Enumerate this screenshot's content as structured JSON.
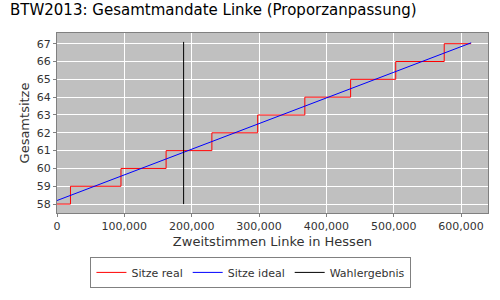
{
  "chart_data": {
    "type": "line",
    "title": "BTW2013: Gesamtmandate Linke (Proporzanpassung)",
    "x_label": "Zweitstimmen Linke in Hessen",
    "y_label": "Gesamtsitze",
    "xlim": [
      0,
      640000
    ],
    "xticks": [
      0,
      {
        "value": 100000,
        "label": "100,000"
      },
      {
        "value": 200000,
        "label": "200,000"
      },
      {
        "value": 300000,
        "label": "300,000"
      },
      {
        "value": 400000,
        "label": "400,000"
      },
      {
        "value": 500000,
        "label": "500,000"
      },
      {
        "value": 600000,
        "label": "600,000"
      }
    ],
    "ylim": [
      57.5,
      67.6
    ],
    "yticks": [
      58,
      59,
      60,
      61,
      62,
      63,
      64,
      65,
      66,
      67
    ],
    "grid": true,
    "legend": "bottom",
    "series": [
      {
        "name": "Sitze real",
        "color": "#ff0000",
        "line_style": "step",
        "x": [
          0,
          20000,
          95000,
          162000,
          230000,
          298000,
          368000,
          436000,
          503000,
          575000,
          615000
        ],
        "values": [
          58,
          59,
          60,
          61,
          62,
          63,
          64,
          65,
          66,
          67,
          67
        ]
      },
      {
        "name": "Sitze ideal",
        "color": "#0000ff",
        "line_style": "solid",
        "x": [
          0,
          615000
        ],
        "values": [
          58.2,
          67.05
        ]
      },
      {
        "name": "Wahlergebnis",
        "color": "#000000",
        "line_style": "solid",
        "x": [
          188000,
          188000
        ],
        "values": [
          58.0,
          67.1
        ]
      }
    ]
  }
}
